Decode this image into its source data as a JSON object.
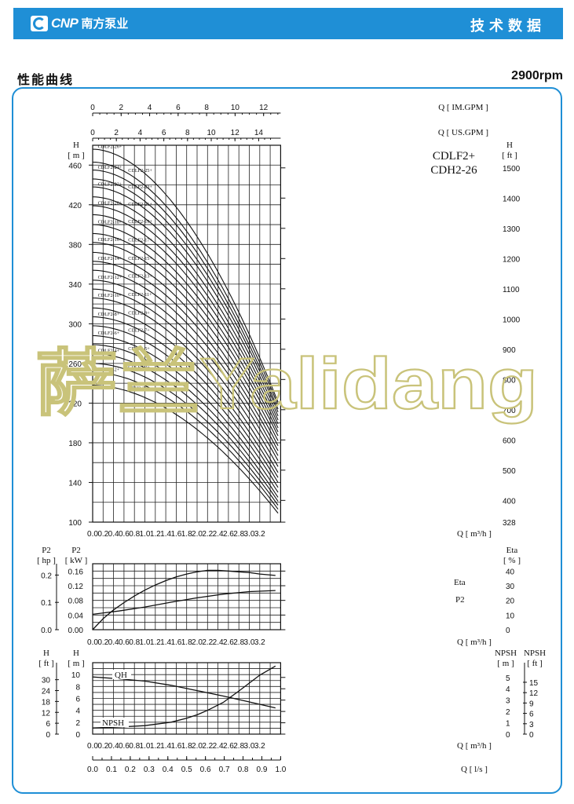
{
  "header": {
    "logo_text": "CNP",
    "logo_cn": "南方泵业",
    "right_title": "技术数据",
    "section_title": "性能曲线",
    "speed": "2900rpm"
  },
  "watermark": "萨兰Yalidang",
  "colors": {
    "brand_blue": "#1f8fd6",
    "watermark": "#c9c37a",
    "grid": "#111111"
  },
  "chart_data": [
    {
      "id": "head",
      "type": "line",
      "model_label": [
        "CDLF2+",
        "CDH2-26"
      ],
      "xlabel": "Q [ m³/h ]",
      "ylabel_left": [
        "H",
        "[ m ]"
      ],
      "ylabel_right": [
        "H",
        "[ ft ]"
      ],
      "top_axis_1_label": "Q [ IM.GPM ]",
      "top_axis_2_label": "Q [ US.GPM ]",
      "xlim": [
        0,
        3.6
      ],
      "ylim": [
        100,
        480
      ],
      "x_ticks": [
        "0.0",
        "0.2",
        "0.4",
        "0.6",
        "0.8",
        "1.0",
        "1.2",
        "1.4",
        "1.6",
        "1.8",
        "2.0",
        "2.2",
        "2.4",
        "2.6",
        "2.8",
        "3.0",
        "3.2"
      ],
      "y_ticks": [
        "100",
        "140",
        "180",
        "220",
        "260",
        "300",
        "340",
        "380",
        "420",
        "460"
      ],
      "right_ticks": [
        "328",
        "400",
        "500",
        "600",
        "700",
        "800",
        "900",
        "1000",
        "1100",
        "1200",
        "1300",
        "1400",
        "1500"
      ],
      "im_gpm_ticks": [
        "0",
        "2",
        "4",
        "6",
        "8",
        "10",
        "12"
      ],
      "us_gpm_ticks": [
        "0",
        "2",
        "4",
        "6",
        "8",
        "10",
        "12",
        "14"
      ],
      "series": [
        {
          "name": "CDLF2-26+",
          "h0": 476,
          "h_end": 221
        },
        {
          "name": "CDLF2-25+",
          "h0": 463,
          "h_end": 218
        },
        {
          "name": "CDLF2-24+",
          "h0": 455,
          "h_end": 214
        },
        {
          "name": "CDLF2-23+",
          "h0": 446,
          "h_end": 211
        },
        {
          "name": "CDLF2-22+",
          "h0": 438,
          "h_end": 207
        },
        {
          "name": "CDLF2-21+",
          "h0": 428,
          "h_end": 203
        },
        {
          "name": "CDLF2-20+",
          "h0": 419,
          "h_end": 199
        },
        {
          "name": "CDLF2-19+",
          "h0": 410,
          "h_end": 195
        },
        {
          "name": "CDLF2-18+",
          "h0": 400,
          "h_end": 191
        },
        {
          "name": "CDLF2-17+",
          "h0": 391,
          "h_end": 187
        },
        {
          "name": "CDLF2-16+",
          "h0": 382,
          "h_end": 182
        },
        {
          "name": "CDLF2-15+",
          "h0": 372,
          "h_end": 177
        },
        {
          "name": "CDLF2-14+",
          "h0": 363,
          "h_end": 172
        },
        {
          "name": "CDLF2-13+",
          "h0": 354,
          "h_end": 167
        },
        {
          "name": "CDLF2-12+",
          "h0": 344,
          "h_end": 162
        },
        {
          "name": "CDLF2-11+",
          "h0": 335,
          "h_end": 156
        },
        {
          "name": "CDLF2-10+",
          "h0": 326,
          "h_end": 150
        },
        {
          "name": "CDLF2-9+",
          "h0": 316,
          "h_end": 145
        },
        {
          "name": "CDLF2-8+",
          "h0": 307,
          "h_end": 140
        },
        {
          "name": "CDLF2-7+",
          "h0": 298,
          "h_end": 135
        },
        {
          "name": "CDLF2-6+",
          "h0": 288,
          "h_end": 130
        },
        {
          "name": "CDLF2-5+",
          "h0": 279,
          "h_end": 125
        },
        {
          "name": "CDLF2-4+",
          "h0": 270,
          "h_end": 121
        },
        {
          "name": "CDLF2-3+",
          "h0": 260,
          "h_end": 117
        },
        {
          "name": "CDLF2-2+",
          "h0": 251,
          "h_end": 113
        },
        {
          "name": "CDH2-26",
          "h0": 238,
          "h_end": 109
        }
      ],
      "q_end": 3.55
    },
    {
      "id": "power",
      "type": "line",
      "xlabel": "Q [ m³/h ]",
      "ylabel_left_1": [
        "P2",
        "[ hp ]"
      ],
      "ylabel_left_2": [
        "P2",
        "[ kW ]"
      ],
      "ylabel_right": [
        "Eta",
        "[ % ]"
      ],
      "xlim": [
        0,
        3.6
      ],
      "ylim_kw": [
        0,
        0.18
      ],
      "kw_ticks": [
        "0.00",
        "0.04",
        "0.08",
        "0.12",
        "0.16"
      ],
      "hp_ticks": [
        "0.0",
        "0.1",
        "0.2"
      ],
      "eta_ticks": [
        "0",
        "10",
        "20",
        "30",
        "40"
      ],
      "x_ticks": [
        "0.0",
        "0.2",
        "0.4",
        "0.6",
        "0.8",
        "1.0",
        "1.2",
        "1.4",
        "1.6",
        "1.8",
        "2.0",
        "2.2",
        "2.4",
        "2.6",
        "2.8",
        "3.0",
        "3.2"
      ],
      "series": [
        {
          "name": "Eta",
          "x": [
            0,
            0.2,
            0.4,
            0.6,
            0.8,
            1.0,
            1.2,
            1.4,
            1.6,
            1.8,
            2.0,
            2.2,
            2.4,
            2.6,
            2.8,
            3.0,
            3.2,
            3.5
          ],
          "y": [
            0,
            7.5,
            13.5,
            18.5,
            23,
            27,
            30.5,
            33.5,
            36,
            38,
            39.5,
            40.5,
            40.5,
            40,
            39.5,
            39,
            38,
            37
          ]
        },
        {
          "name": "P2",
          "x": [
            0,
            0.5,
            1.0,
            1.5,
            2.0,
            2.5,
            3.0,
            3.5
          ],
          "y": [
            0.042,
            0.051,
            0.062,
            0.075,
            0.087,
            0.097,
            0.104,
            0.107
          ]
        }
      ]
    },
    {
      "id": "npsh",
      "type": "line",
      "xlabel": "Q [ m³/h ]",
      "x2label": "Q [ l/s ]",
      "ylabel_left_1": [
        "H",
        "[ ft ]"
      ],
      "ylabel_left_2": [
        "H",
        "[ m ]"
      ],
      "ylabel_right_1": [
        "NPSH",
        "[ m ]"
      ],
      "ylabel_right_2": [
        "NPSH",
        "[ ft ]"
      ],
      "xlim": [
        0,
        3.6
      ],
      "h_m_ticks": [
        "0",
        "2",
        "4",
        "6",
        "8",
        "10"
      ],
      "h_ft_ticks": [
        "0",
        "6",
        "12",
        "18",
        "24",
        "30"
      ],
      "npsh_m_ticks": [
        "0",
        "1",
        "2",
        "3",
        "4",
        "5"
      ],
      "npsh_ft_ticks": [
        "0",
        "3",
        "6",
        "9",
        "12",
        "15"
      ],
      "x_ticks": [
        "0.0",
        "0.2",
        "0.4",
        "0.6",
        "0.8",
        "1.0",
        "1.2",
        "1.4",
        "1.6",
        "1.8",
        "2.0",
        "2.2",
        "2.4",
        "2.6",
        "2.8",
        "3.0",
        "3.2"
      ],
      "ls_ticks": [
        "0.0",
        "0.1",
        "0.2",
        "0.3",
        "0.4",
        "0.5",
        "0.6",
        "0.7",
        "0.8",
        "0.9",
        "1.0"
      ],
      "series": [
        {
          "name": "QH",
          "x": [
            0,
            0.5,
            1.0,
            1.5,
            2.0,
            2.5,
            3.0,
            3.5
          ],
          "y": [
            9.6,
            9.3,
            8.9,
            8.2,
            7.3,
            6.4,
            5.4,
            4.4
          ]
        },
        {
          "name": "NPSH",
          "x": [
            0,
            0.5,
            1.0,
            1.5,
            1.8,
            2.0,
            2.2,
            2.5,
            2.8,
            3.0,
            3.2,
            3.5
          ],
          "y": [
            0.55,
            0.62,
            0.75,
            1.05,
            1.4,
            1.7,
            2.1,
            2.8,
            3.8,
            4.5,
            5.2,
            6.0
          ]
        }
      ]
    }
  ]
}
